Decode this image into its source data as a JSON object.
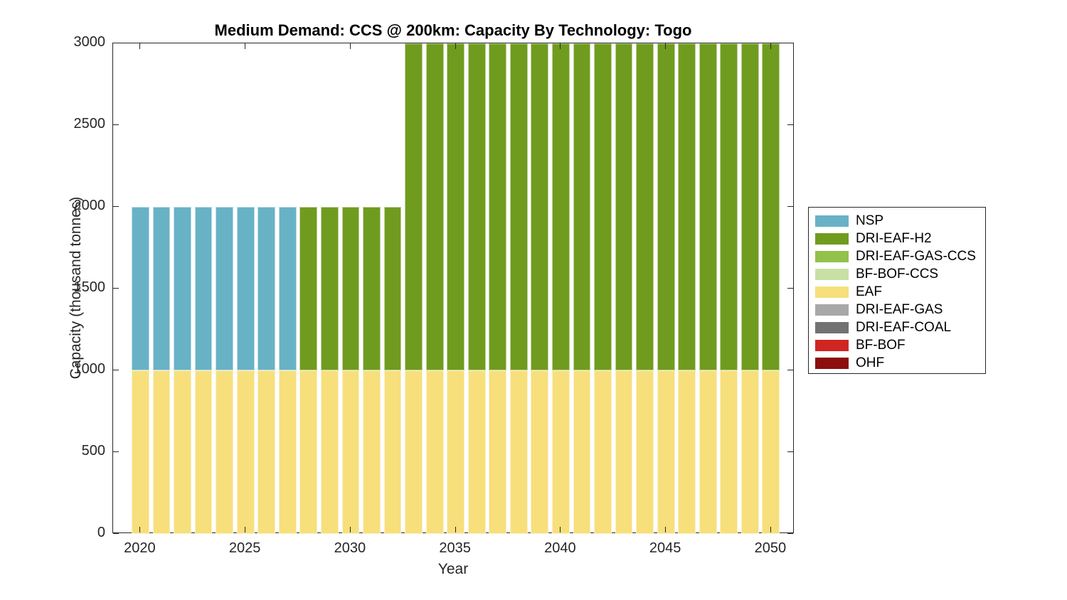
{
  "figure": {
    "background": "#ffffff",
    "axis_color": "#262626"
  },
  "chart_data": {
    "type": "bar",
    "stacked": true,
    "title": "Medium Demand: CCS @ 200km: Capacity By Technology: Togo",
    "xlabel": "Year",
    "ylabel": "Capacity (thousand tonnes)",
    "grid": false,
    "legend_position": "right-outside",
    "x": [
      2020,
      2021,
      2022,
      2023,
      2024,
      2025,
      2026,
      2027,
      2028,
      2029,
      2030,
      2031,
      2032,
      2033,
      2034,
      2035,
      2036,
      2037,
      2038,
      2039,
      2040,
      2041,
      2042,
      2043,
      2044,
      2045,
      2046,
      2047,
      2048,
      2049,
      2050
    ],
    "xticks": [
      2020,
      2025,
      2030,
      2035,
      2040,
      2045,
      2050
    ],
    "yticks": [
      0,
      500,
      1000,
      1500,
      2000,
      2500,
      3000
    ],
    "xlim": [
      2018.7,
      2051.12
    ],
    "ylim": [
      0,
      3000
    ],
    "bar_width_fraction": 0.84,
    "series": [
      {
        "name": "NSP",
        "color": "#68b2c6",
        "values": [
          1000,
          1000,
          1000,
          1000,
          1000,
          1000,
          1000,
          1000,
          0,
          0,
          0,
          0,
          0,
          0,
          0,
          0,
          0,
          0,
          0,
          0,
          0,
          0,
          0,
          0,
          0,
          0,
          0,
          0,
          0,
          0,
          0
        ]
      },
      {
        "name": "DRI-EAF-H2",
        "color": "#6f9c1e",
        "values": [
          0,
          0,
          0,
          0,
          0,
          0,
          0,
          0,
          1000,
          1000,
          1000,
          1000,
          1000,
          2000,
          2000,
          2000,
          2000,
          2000,
          2000,
          2000,
          2000,
          2000,
          2000,
          2000,
          2000,
          2000,
          2000,
          2000,
          2000,
          2000,
          2000
        ]
      },
      {
        "name": "DRI-EAF-GAS-CCS",
        "color": "#92c14c",
        "values": [
          0,
          0,
          0,
          0,
          0,
          0,
          0,
          0,
          0,
          0,
          0,
          0,
          0,
          0,
          0,
          0,
          0,
          0,
          0,
          0,
          0,
          0,
          0,
          0,
          0,
          0,
          0,
          0,
          0,
          0,
          0
        ]
      },
      {
        "name": "BF-BOF-CCS",
        "color": "#c8e0a4",
        "values": [
          0,
          0,
          0,
          0,
          0,
          0,
          0,
          0,
          0,
          0,
          0,
          0,
          0,
          0,
          0,
          0,
          0,
          0,
          0,
          0,
          0,
          0,
          0,
          0,
          0,
          0,
          0,
          0,
          0,
          0,
          0
        ]
      },
      {
        "name": "EAF",
        "color": "#f7df7c",
        "values": [
          1000,
          1000,
          1000,
          1000,
          1000,
          1000,
          1000,
          1000,
          1000,
          1000,
          1000,
          1000,
          1000,
          1000,
          1000,
          1000,
          1000,
          1000,
          1000,
          1000,
          1000,
          1000,
          1000,
          1000,
          1000,
          1000,
          1000,
          1000,
          1000,
          1000,
          1000
        ]
      },
      {
        "name": "DRI-EAF-GAS",
        "color": "#a8a8a8",
        "values": [
          0,
          0,
          0,
          0,
          0,
          0,
          0,
          0,
          0,
          0,
          0,
          0,
          0,
          0,
          0,
          0,
          0,
          0,
          0,
          0,
          0,
          0,
          0,
          0,
          0,
          0,
          0,
          0,
          0,
          0,
          0
        ]
      },
      {
        "name": "DRI-EAF-COAL",
        "color": "#727272",
        "values": [
          0,
          0,
          0,
          0,
          0,
          0,
          0,
          0,
          0,
          0,
          0,
          0,
          0,
          0,
          0,
          0,
          0,
          0,
          0,
          0,
          0,
          0,
          0,
          0,
          0,
          0,
          0,
          0,
          0,
          0,
          0
        ]
      },
      {
        "name": "BF-BOF",
        "color": "#d02622",
        "values": [
          0,
          0,
          0,
          0,
          0,
          0,
          0,
          0,
          0,
          0,
          0,
          0,
          0,
          0,
          0,
          0,
          0,
          0,
          0,
          0,
          0,
          0,
          0,
          0,
          0,
          0,
          0,
          0,
          0,
          0,
          0
        ]
      },
      {
        "name": "OHF",
        "color": "#8c0e0e",
        "values": [
          0,
          0,
          0,
          0,
          0,
          0,
          0,
          0,
          0,
          0,
          0,
          0,
          0,
          0,
          0,
          0,
          0,
          0,
          0,
          0,
          0,
          0,
          0,
          0,
          0,
          0,
          0,
          0,
          0,
          0,
          0
        ]
      }
    ]
  }
}
